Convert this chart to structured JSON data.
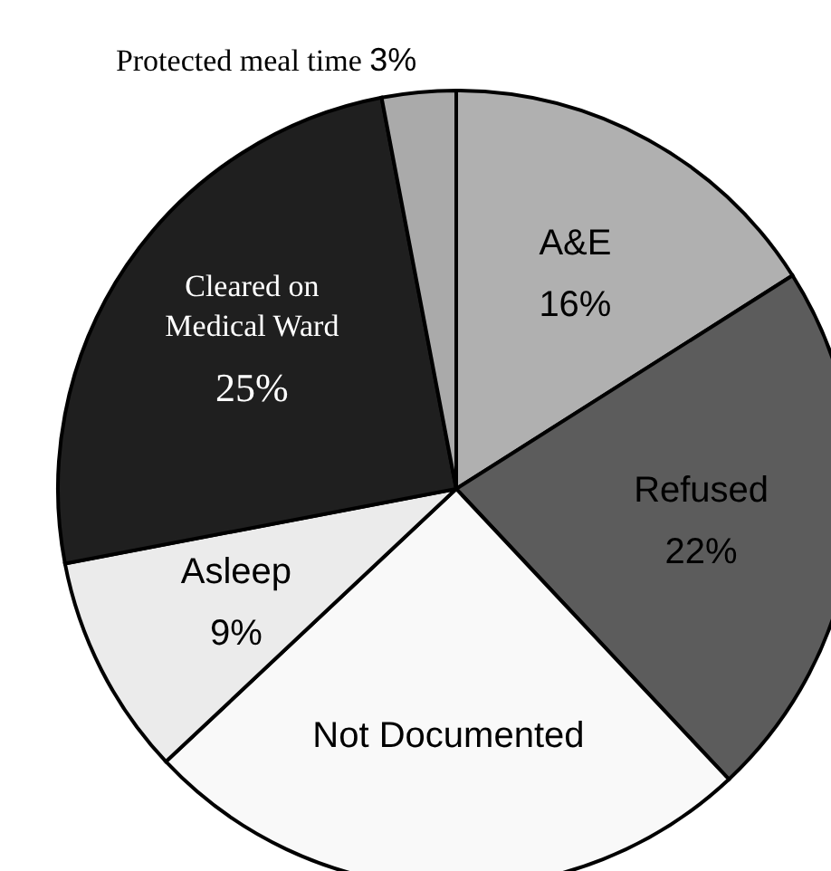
{
  "chart_data": {
    "type": "pie",
    "categories": [
      "A&E",
      "Refused",
      "Not Documented",
      "Asleep",
      "Cleared on Medical Ward",
      "Protected meal time"
    ],
    "values": [
      16,
      22,
      25,
      9,
      25,
      3
    ],
    "colors": [
      "#b0b0b0",
      "#5c5c5c",
      "#f9f9f9",
      "#ebebeb",
      "#1f1f1f",
      "#aaaaaa"
    ],
    "value_labels": [
      "16%",
      "22%",
      null,
      "9%",
      "25%",
      "3%"
    ],
    "legend": false
  }
}
